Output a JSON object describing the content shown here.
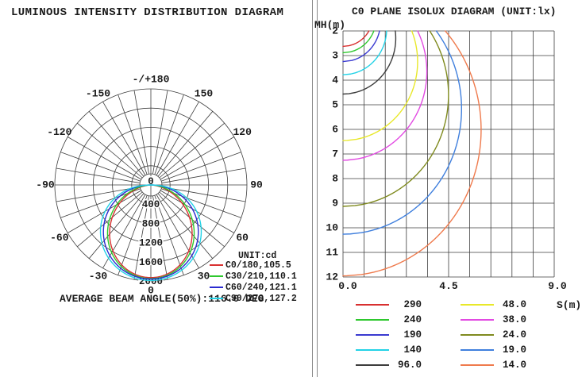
{
  "left_panel": {
    "title": "LUMINOUS INTENSITY DISTRIBUTION DIAGRAM",
    "legend_title": "UNIT:cd",
    "footer": "AVERAGE BEAM ANGLE(50%):116.0 DEG"
  },
  "right_panel": {
    "title": "C0 PLANE ISOLUX DIAGRAM (UNIT:lx)",
    "y_axis_label": "MH(m)",
    "x_axis_label": "S(m)"
  },
  "chart_data": [
    {
      "type": "line",
      "variant": "polar-intensity-distribution",
      "title": "LUMINOUS INTENSITY DISTRIBUTION DIAGRAM",
      "units": "cd",
      "r_ticks": [
        0,
        400,
        800,
        1200,
        1600,
        2000
      ],
      "r_max": 2000,
      "angle_step_deg": 10,
      "angle_labels": [
        {
          "deg": 0,
          "label": "0"
        },
        {
          "deg": 30,
          "label": "30"
        },
        {
          "deg": -30,
          "label": "-30"
        },
        {
          "deg": 60,
          "label": "60"
        },
        {
          "deg": -60,
          "label": "-60"
        },
        {
          "deg": 90,
          "label": "90"
        },
        {
          "deg": -90,
          "label": "-90"
        },
        {
          "deg": 120,
          "label": "120"
        },
        {
          "deg": -120,
          "label": "-120"
        },
        {
          "deg": 150,
          "label": "150"
        },
        {
          "deg": -150,
          "label": "-150"
        },
        {
          "deg": 180,
          "label": "-/+180"
        }
      ],
      "legend_title": "UNIT:cd",
      "series": [
        {
          "label": "C0/180,105.5",
          "color": "#d83030",
          "beam_angle_deg": 105.5,
          "peak_cd": 1930
        },
        {
          "label": "C30/210,110.1",
          "color": "#2ec82e",
          "beam_angle_deg": 110.1,
          "peak_cd": 1950
        },
        {
          "label": "C60/240,121.1",
          "color": "#2a2ad0",
          "beam_angle_deg": 121.1,
          "peak_cd": 1960
        },
        {
          "label": "C90/270,127.2",
          "color": "#22d2e6",
          "beam_angle_deg": 127.2,
          "peak_cd": 1990
        }
      ],
      "average_beam_angle_label": "AVERAGE BEAM ANGLE(50%):116.0 DEG"
    },
    {
      "type": "line",
      "variant": "isolux",
      "title": "C0 PLANE ISOLUX DIAGRAM (UNIT:lx)",
      "units": "lx",
      "x_label": "S(m)",
      "y_label": "MH(m)",
      "x_ticks": [
        "0.0",
        "4.5",
        "9.0"
      ],
      "x_range": [
        0,
        9
      ],
      "x_grid_step": 0.9,
      "y_ticks": [
        2,
        3,
        4,
        5,
        6,
        7,
        8,
        9,
        10,
        11,
        12
      ],
      "y_range": [
        2,
        12
      ],
      "y_grid_step": 1,
      "grid": true,
      "source": {
        "peak_cd": 2000,
        "beam_exponent": 1.09
      },
      "levels_lx": [
        {
          "label": "290",
          "value": 290,
          "color": "#d83030"
        },
        {
          "label": "240",
          "value": 240,
          "color": "#2ec82e"
        },
        {
          "label": "190",
          "value": 190,
          "color": "#3a3ad0"
        },
        {
          "label": "140",
          "value": 140,
          "color": "#22d2e6"
        },
        {
          "label": "96.0",
          "value": 96,
          "color": "#3c3c3c"
        },
        {
          "label": "48.0",
          "value": 48,
          "color": "#e8e82a"
        },
        {
          "label": "38.0",
          "value": 38,
          "color": "#e24ae2"
        },
        {
          "label": "24.0",
          "value": 24,
          "color": "#7f8a1e"
        },
        {
          "label": "19.0",
          "value": 19,
          "color": "#3f7fdd"
        },
        {
          "label": "14.0",
          "value": 14,
          "color": "#ef7a4c"
        }
      ]
    }
  ]
}
